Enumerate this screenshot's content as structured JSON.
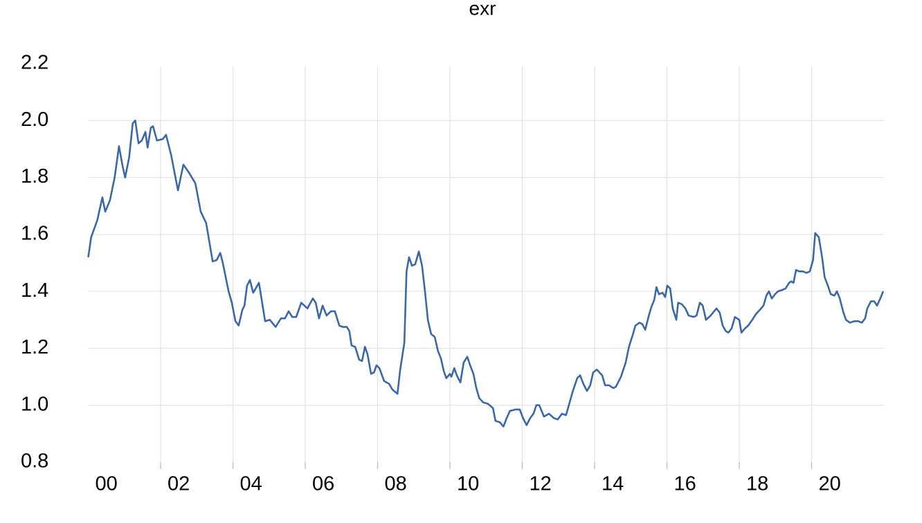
{
  "chart_data": {
    "type": "line",
    "title": "exr",
    "x": [
      2000.0,
      2000.08,
      2000.25,
      2000.39,
      2000.47,
      2000.6,
      2000.73,
      2000.85,
      2000.95,
      2001.02,
      2001.13,
      2001.23,
      2001.3,
      2001.39,
      2001.48,
      2001.58,
      2001.64,
      2001.73,
      2001.79,
      2001.9,
      2002.06,
      2002.15,
      2002.29,
      2002.48,
      2002.63,
      2002.77,
      2002.96,
      2003.11,
      2003.26,
      2003.44,
      2003.55,
      2003.65,
      2003.72,
      2003.88,
      2003.97,
      2004.07,
      2004.16,
      2004.26,
      2004.32,
      2004.39,
      2004.47,
      2004.56,
      2004.72,
      2004.89,
      2005.02,
      2005.18,
      2005.33,
      2005.44,
      2005.54,
      2005.64,
      2005.75,
      2005.89,
      2006.06,
      2006.21,
      2006.29,
      2006.38,
      2006.48,
      2006.59,
      2006.71,
      2006.82,
      2006.94,
      2007.03,
      2007.15,
      2007.22,
      2007.28,
      2007.38,
      2007.49,
      2007.57,
      2007.65,
      2007.72,
      2007.82,
      2007.9,
      2007.97,
      2008.05,
      2008.18,
      2008.32,
      2008.41,
      2008.55,
      2008.62,
      2008.74,
      2008.8,
      2008.87,
      2008.95,
      2009.04,
      2009.14,
      2009.23,
      2009.31,
      2009.39,
      2009.48,
      2009.58,
      2009.67,
      2009.75,
      2009.83,
      2009.9,
      2010.0,
      2010.04,
      2010.12,
      2010.19,
      2010.29,
      2010.38,
      2010.48,
      2010.56,
      2010.65,
      2010.73,
      2010.81,
      2010.92,
      2011.05,
      2011.19,
      2011.26,
      2011.38,
      2011.48,
      2011.57,
      2011.66,
      2011.82,
      2011.93,
      2012.02,
      2012.12,
      2012.22,
      2012.31,
      2012.39,
      2012.47,
      2012.6,
      2012.74,
      2012.87,
      2012.98,
      2013.1,
      2013.21,
      2013.31,
      2013.4,
      2013.52,
      2013.6,
      2013.69,
      2013.79,
      2013.88,
      2013.96,
      2014.06,
      2014.21,
      2014.29,
      2014.4,
      2014.52,
      2014.59,
      2014.73,
      2014.86,
      2014.95,
      2015.05,
      2015.13,
      2015.24,
      2015.32,
      2015.4,
      2015.49,
      2015.57,
      2015.65,
      2015.71,
      2015.78,
      2015.88,
      2015.95,
      2016.01,
      2016.09,
      2016.16,
      2016.26,
      2016.31,
      2016.41,
      2016.51,
      2016.6,
      2016.74,
      2016.82,
      2016.91,
      2016.99,
      2017.08,
      2017.21,
      2017.37,
      2017.46,
      2017.54,
      2017.63,
      2017.7,
      2017.79,
      2017.88,
      2018.0,
      2018.06,
      2018.16,
      2018.25,
      2018.36,
      2018.46,
      2018.57,
      2018.67,
      2018.75,
      2018.82,
      2018.9,
      2018.99,
      2019.07,
      2019.19,
      2019.28,
      2019.38,
      2019.43,
      2019.5,
      2019.57,
      2019.66,
      2019.76,
      2019.86,
      2019.95,
      2020.04,
      2020.1,
      2020.2,
      2020.29,
      2020.36,
      2020.45,
      2020.53,
      2020.63,
      2020.7,
      2020.78,
      2020.87,
      2020.95,
      2021.06,
      2021.18,
      2021.29,
      2021.39,
      2021.48,
      2021.54,
      2021.64,
      2021.73,
      2021.81,
      2021.9,
      2021.98
    ],
    "series": [
      {
        "name": "exr",
        "color": "#3a67a5",
        "values": [
          1.52,
          1.59,
          1.65,
          1.73,
          1.68,
          1.72,
          1.8,
          1.91,
          1.84,
          1.8,
          1.87,
          1.99,
          2.0,
          1.92,
          1.93,
          1.96,
          1.905,
          1.975,
          1.98,
          1.93,
          1.935,
          1.95,
          1.88,
          1.755,
          1.845,
          1.82,
          1.78,
          1.68,
          1.64,
          1.505,
          1.51,
          1.535,
          1.5,
          1.4,
          1.36,
          1.295,
          1.28,
          1.335,
          1.35,
          1.42,
          1.44,
          1.395,
          1.43,
          1.295,
          1.3,
          1.275,
          1.305,
          1.305,
          1.33,
          1.31,
          1.31,
          1.36,
          1.34,
          1.375,
          1.36,
          1.305,
          1.35,
          1.315,
          1.33,
          1.33,
          1.28,
          1.275,
          1.275,
          1.26,
          1.21,
          1.205,
          1.16,
          1.155,
          1.205,
          1.18,
          1.11,
          1.115,
          1.14,
          1.13,
          1.085,
          1.075,
          1.055,
          1.04,
          1.12,
          1.22,
          1.47,
          1.52,
          1.49,
          1.495,
          1.54,
          1.49,
          1.4,
          1.3,
          1.25,
          1.24,
          1.19,
          1.165,
          1.12,
          1.095,
          1.11,
          1.1,
          1.13,
          1.105,
          1.08,
          1.15,
          1.17,
          1.14,
          1.11,
          1.06,
          1.025,
          1.01,
          1.005,
          0.99,
          0.945,
          0.94,
          0.925,
          0.955,
          0.98,
          0.985,
          0.985,
          0.955,
          0.93,
          0.955,
          0.97,
          1.0,
          1.0,
          0.96,
          0.97,
          0.955,
          0.95,
          0.97,
          0.965,
          1.01,
          1.05,
          1.095,
          1.105,
          1.075,
          1.05,
          1.07,
          1.115,
          1.125,
          1.105,
          1.07,
          1.07,
          1.06,
          1.065,
          1.1,
          1.15,
          1.205,
          1.245,
          1.28,
          1.29,
          1.285,
          1.265,
          1.31,
          1.345,
          1.37,
          1.415,
          1.39,
          1.395,
          1.38,
          1.42,
          1.41,
          1.34,
          1.3,
          1.36,
          1.355,
          1.34,
          1.315,
          1.31,
          1.315,
          1.36,
          1.35,
          1.3,
          1.315,
          1.34,
          1.325,
          1.28,
          1.26,
          1.255,
          1.27,
          1.31,
          1.3,
          1.255,
          1.27,
          1.28,
          1.3,
          1.32,
          1.335,
          1.35,
          1.385,
          1.4,
          1.375,
          1.39,
          1.4,
          1.405,
          1.41,
          1.43,
          1.435,
          1.43,
          1.475,
          1.47,
          1.47,
          1.465,
          1.47,
          1.51,
          1.605,
          1.59,
          1.52,
          1.45,
          1.42,
          1.39,
          1.385,
          1.4,
          1.375,
          1.33,
          1.3,
          1.29,
          1.295,
          1.295,
          1.29,
          1.305,
          1.34,
          1.365,
          1.365,
          1.35,
          1.375,
          1.4
        ]
      }
    ],
    "xlim": [
      2000,
      2022
    ],
    "xticks": [
      {
        "value": 2000,
        "label": "00"
      },
      {
        "value": 2002,
        "label": "02"
      },
      {
        "value": 2004,
        "label": "04"
      },
      {
        "value": 2006,
        "label": "06"
      },
      {
        "value": 2008,
        "label": "08"
      },
      {
        "value": 2010,
        "label": "10"
      },
      {
        "value": 2012,
        "label": "12"
      },
      {
        "value": 2014,
        "label": "14"
      },
      {
        "value": 2016,
        "label": "16"
      },
      {
        "value": 2018,
        "label": "18"
      },
      {
        "value": 2020,
        "label": "20"
      }
    ],
    "ylim": [
      0.8,
      2.2
    ],
    "yticks": [
      0.8,
      {
        "value": 1.0,
        "label": "1.0"
      },
      1.2,
      1.4,
      1.6,
      1.8,
      {
        "value": 2.0,
        "label": "2.0"
      },
      2.2
    ],
    "grid": true
  }
}
